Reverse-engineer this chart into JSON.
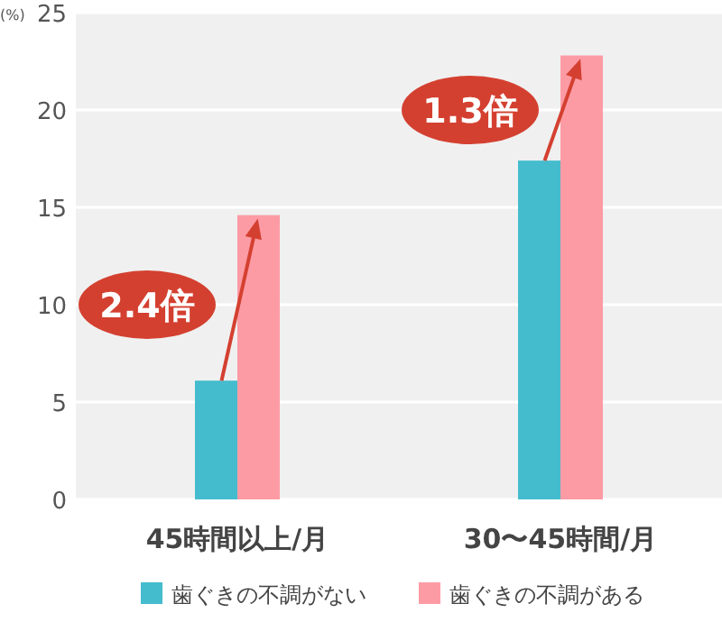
{
  "chart_data": {
    "type": "bar",
    "ylabel": "(%)",
    "categories": [
      "45時間以上/月",
      "30〜45時間/月"
    ],
    "series": [
      {
        "name": "歯ぐきの不調がない",
        "color": "#44bccd",
        "values": [
          6.1,
          17.4
        ]
      },
      {
        "name": "歯ぐきの不調がある",
        "color": "#fd9ba5",
        "values": [
          14.6,
          22.8
        ]
      }
    ],
    "ylim": [
      0,
      25
    ],
    "yticks": [
      0,
      5,
      10,
      15,
      20,
      25
    ],
    "grid": "y",
    "legend": "bottom",
    "annotations": [
      {
        "text": "2.4倍",
        "x": "45時間以上/月",
        "y": 10
      },
      {
        "text": "1.3倍",
        "x": "30〜45時間/月",
        "y": 20
      }
    ]
  }
}
